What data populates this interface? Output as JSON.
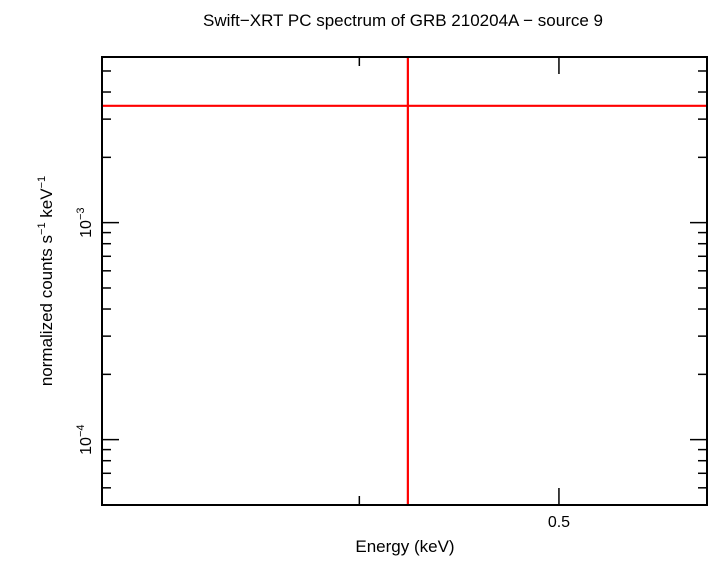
{
  "chart_data": {
    "type": "scatter",
    "title": "Swift−XRT PC spectrum of GRB 210204A − source 9",
    "xlabel": "Energy (keV)",
    "ylabel": {
      "prefix": "normalized counts s",
      "sup1": "−1",
      "middle": " keV",
      "sup2": "−1"
    },
    "xscale": "log",
    "yscale": "log",
    "xlim": [
      0.3,
      0.59
    ],
    "ylim": [
      5e-05,
      0.0058
    ],
    "x_ticks": [
      {
        "value": 0.5,
        "label": "0.5"
      }
    ],
    "x_minor_ticks": [
      0.3,
      0.4
    ],
    "y_ticks": [
      {
        "value": 0.0001,
        "base": "10",
        "exp": "−4"
      },
      {
        "value": 0.001,
        "base": "10",
        "exp": "−3"
      }
    ],
    "series": [
      {
        "color": "#ff0000",
        "points": [
          {
            "x": 0.4223,
            "y": 0.003455,
            "xerr_low": 0.3,
            "xerr_high": 0.59,
            "yerr_low": 5e-05,
            "yerr_high": 0.0058
          }
        ]
      }
    ],
    "grid": false,
    "legend": "none"
  }
}
